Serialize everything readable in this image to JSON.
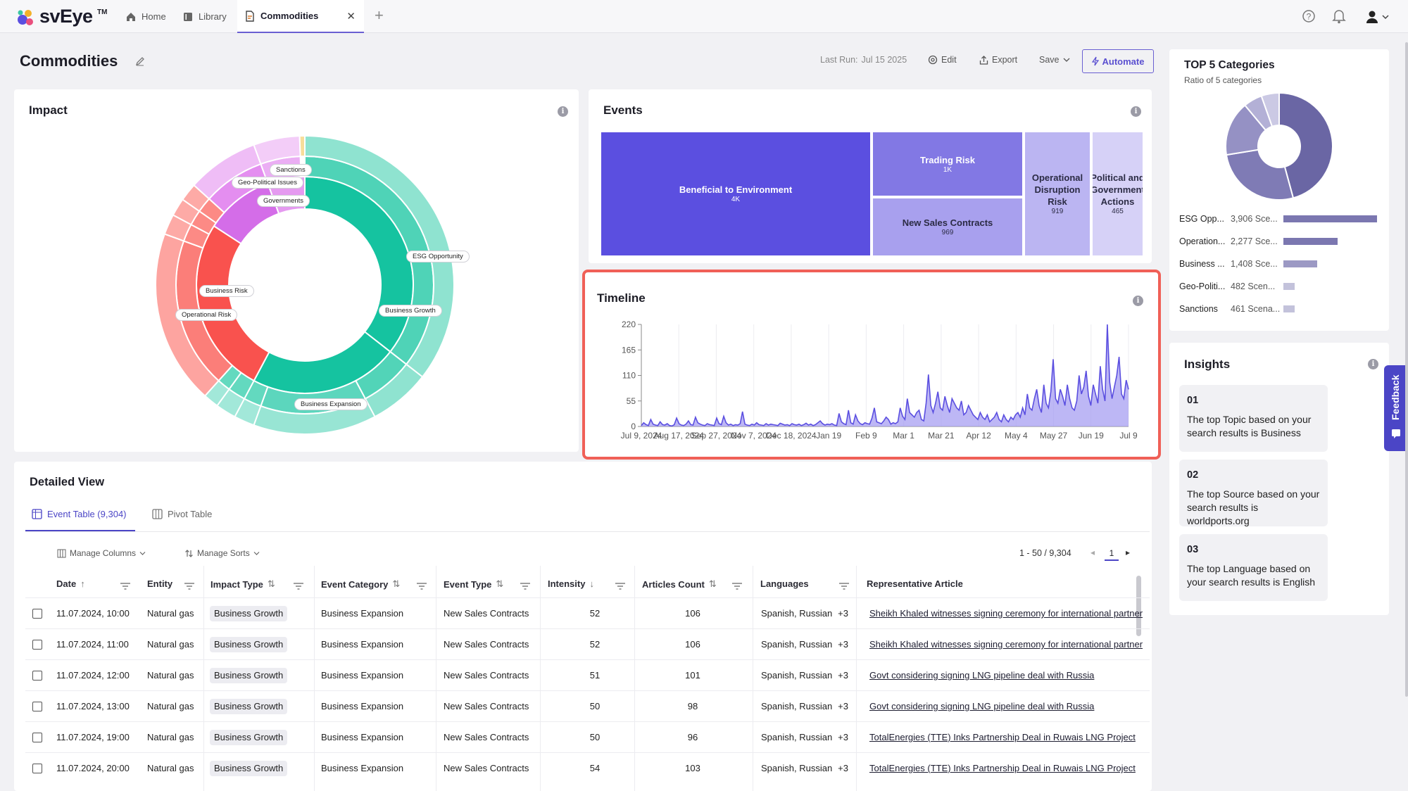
{
  "app": {
    "logo": "svEye",
    "tm": "TM"
  },
  "tabs": [
    {
      "label": "Home",
      "icon": "home-icon"
    },
    {
      "label": "Library",
      "icon": "library-icon"
    },
    {
      "label": "Commodities",
      "icon": "document-icon"
    }
  ],
  "header": {
    "title": "Commodities",
    "last_run_label": "Last Run:",
    "last_run_value": "Jul 15 2025",
    "edit": "Edit",
    "export": "Export",
    "save": "Save",
    "automate": "Automate"
  },
  "impact": {
    "title": "Impact",
    "labels": [
      "Sanctions",
      "Geo-Political Issues",
      "Governments",
      "ESG Opportunity",
      "Business Risk",
      "Business Growth",
      "Operational Risk",
      "Business Expansion"
    ]
  },
  "events": {
    "title": "Events",
    "items": [
      {
        "label": "Beneficial to Environment",
        "value": "4K"
      },
      {
        "label": "Trading Risk",
        "value": "1K"
      },
      {
        "label": "New Sales Contracts",
        "value": "969"
      },
      {
        "label": "Operational Disruption Risk",
        "value": "919"
      },
      {
        "label": "Political and Government Actions",
        "value": "465"
      }
    ]
  },
  "timeline": {
    "title": "Timeline"
  },
  "chart_data": {
    "type": "area",
    "title": "Timeline",
    "ylim": [
      0,
      220
    ],
    "yticks": [
      "220",
      "165",
      "110",
      "55",
      "0"
    ],
    "xticks": [
      "Jul 9, 2024",
      "Aug 17, 2024",
      "Sep 27, 2024",
      "Nov 7, 2024",
      "Dec 18, 2024",
      "Jan 19",
      "Feb 9",
      "Mar 1",
      "Mar 21",
      "Apr 12",
      "May 4",
      "May 27",
      "Jun 19",
      "Jul 9"
    ],
    "values": [
      2,
      8,
      4,
      2,
      15,
      5,
      3,
      2,
      10,
      4,
      3,
      6,
      2,
      1,
      4,
      18,
      6,
      3,
      2,
      5,
      12,
      4,
      3,
      20,
      8,
      5,
      3,
      2,
      6,
      4,
      3,
      2,
      18,
      6,
      4,
      22,
      8,
      3,
      5,
      2,
      4,
      3,
      6,
      32,
      5,
      3,
      2,
      5,
      3,
      8,
      4,
      3,
      2,
      6,
      3,
      5,
      4,
      3,
      2,
      7,
      5,
      3,
      4,
      2,
      6,
      4,
      3,
      5,
      2,
      4,
      7,
      3,
      5,
      2,
      4,
      8,
      12,
      6,
      3,
      5,
      4,
      6,
      3,
      2,
      28,
      10,
      6,
      4,
      35,
      8,
      5,
      25,
      12,
      6,
      4,
      8,
      6,
      5,
      18,
      40,
      10,
      8,
      6,
      12,
      20,
      15,
      5,
      8,
      6,
      10,
      40,
      22,
      15,
      60,
      30,
      25,
      20,
      30,
      35,
      15,
      12,
      50,
      112,
      45,
      30,
      50,
      75,
      40,
      35,
      65,
      45,
      30,
      60,
      50,
      40,
      35,
      55,
      25,
      30,
      45,
      35,
      25,
      20,
      15,
      30,
      20,
      15,
      25,
      10,
      15,
      20,
      30,
      15,
      10,
      25,
      15,
      10,
      20,
      15,
      25,
      30,
      20,
      40,
      25,
      70,
      40,
      35,
      60,
      80,
      45,
      30,
      90,
      50,
      40,
      75,
      145,
      60,
      50,
      80,
      65,
      45,
      90,
      60,
      40,
      35,
      55,
      110,
      70,
      85,
      120,
      65,
      45,
      90,
      70,
      50,
      130,
      80,
      55,
      220,
      95,
      60,
      85,
      110,
      150,
      70,
      60,
      100,
      80
    ]
  },
  "top5": {
    "title": "TOP 5 Categories",
    "subtitle": "Ratio of 5 categories",
    "rows": [
      {
        "name": "ESG Opp...",
        "value": "3,906 Sce...",
        "ratio": 1.0
      },
      {
        "name": "Operation...",
        "value": "2,277 Sce...",
        "ratio": 0.58
      },
      {
        "name": "Business ...",
        "value": "1,408 Sce...",
        "ratio": 0.36
      },
      {
        "name": "Geo-Politi...",
        "value": "482 Scen...",
        "ratio": 0.12
      },
      {
        "name": "Sanctions",
        "value": "461 Scena...",
        "ratio": 0.12
      }
    ]
  },
  "insights": {
    "title": "Insights",
    "items": [
      {
        "num": "01",
        "text": "The top Topic based on your search results is Business"
      },
      {
        "num": "02",
        "text": "The top Source based on your search results is worldports.org"
      },
      {
        "num": "03",
        "text": "The top Language based on your search results is English"
      }
    ]
  },
  "feedback": "Feedback",
  "detailed": {
    "title": "Detailed View",
    "tab_event": "Event Table (9,304)",
    "tab_pivot": "Pivot Table",
    "manage_columns": "Manage Columns",
    "manage_sorts": "Manage Sorts",
    "pagination": "1 - 50 / 9,304",
    "page": "1",
    "columns": [
      "Date",
      "Entity",
      "Impact Type",
      "Event Category",
      "Event Type",
      "Intensity",
      "Articles Count",
      "Languages",
      "Representative Article"
    ],
    "rows": [
      {
        "date": "11.07.2024, 10:00",
        "entity": "Natural gas",
        "impact": "Business Growth",
        "category": "Business Expansion",
        "type": "New Sales Contracts",
        "intensity": "52",
        "articles": "106",
        "languages": "Spanish, Russian",
        "more": "+3",
        "article": "Sheikh Khaled witnesses signing ceremony for international partnerships"
      },
      {
        "date": "11.07.2024, 11:00",
        "entity": "Natural gas",
        "impact": "Business Growth",
        "category": "Business Expansion",
        "type": "New Sales Contracts",
        "intensity": "52",
        "articles": "106",
        "languages": "Spanish, Russian",
        "more": "+3",
        "article": "Sheikh Khaled witnesses signing ceremony for international partnerships"
      },
      {
        "date": "11.07.2024, 12:00",
        "entity": "Natural gas",
        "impact": "Business Growth",
        "category": "Business Expansion",
        "type": "New Sales Contracts",
        "intensity": "51",
        "articles": "101",
        "languages": "Spanish, Russian",
        "more": "+3",
        "article": "Govt considering signing LNG pipeline deal with Russia"
      },
      {
        "date": "11.07.2024, 13:00",
        "entity": "Natural gas",
        "impact": "Business Growth",
        "category": "Business Expansion",
        "type": "New Sales Contracts",
        "intensity": "50",
        "articles": "98",
        "languages": "Spanish, Russian",
        "more": "+3",
        "article": "Govt considering signing LNG pipeline deal with Russia"
      },
      {
        "date": "11.07.2024, 19:00",
        "entity": "Natural gas",
        "impact": "Business Growth",
        "category": "Business Expansion",
        "type": "New Sales Contracts",
        "intensity": "50",
        "articles": "96",
        "languages": "Spanish, Russian",
        "more": "+3",
        "article": "TotalEnergies (TTE) Inks Partnership Deal in Ruwais LNG Project"
      },
      {
        "date": "11.07.2024, 20:00",
        "entity": "Natural gas",
        "impact": "Business Growth",
        "category": "Business Expansion",
        "type": "New Sales Contracts",
        "intensity": "54",
        "articles": "103",
        "languages": "Spanish, Russian",
        "more": "+3",
        "article": "TotalEnergies (TTE) Inks Partnership Deal in Ruwais LNG Project"
      }
    ]
  },
  "colors": {
    "accent": "#5a4fd0",
    "highlight": "#f06057",
    "treemap_main": "#5b4fe0"
  }
}
